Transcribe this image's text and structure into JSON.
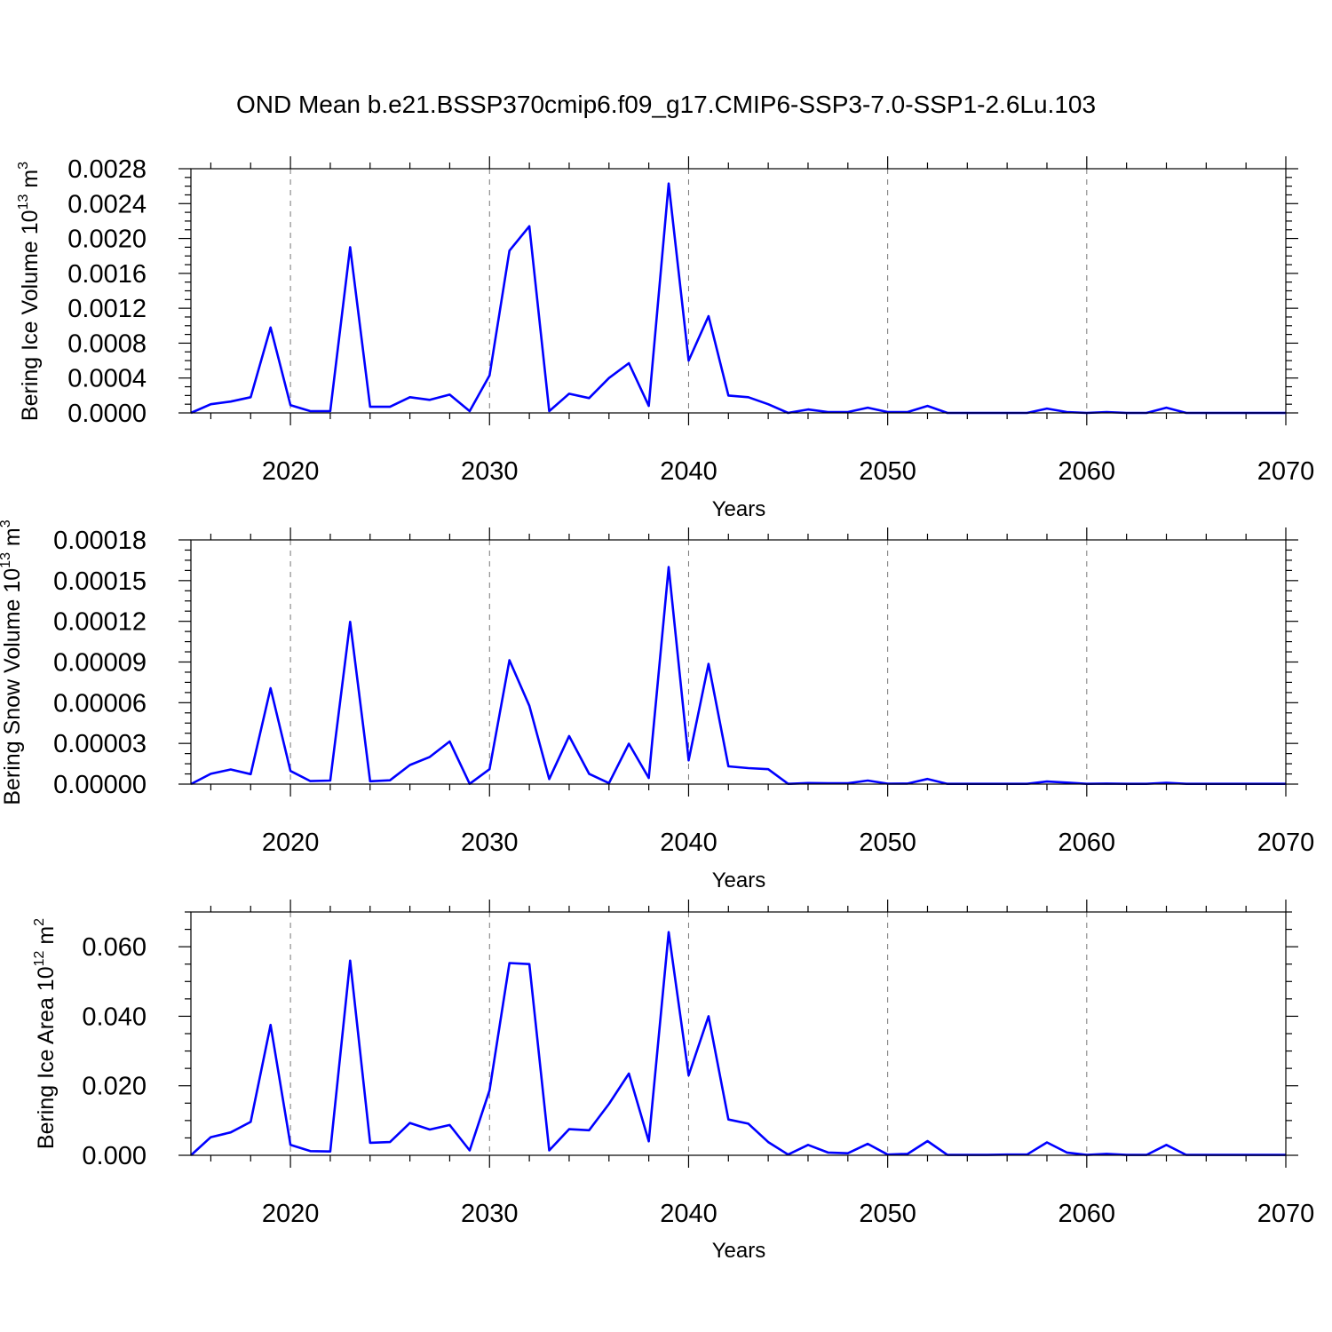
{
  "title": "OND Mean b.e21.BSSP370cmip6.f09_g17.CMIP6-SSP3-7.0-SSP1-2.6Lu.103",
  "line_color": "#0000ff",
  "chart_data": [
    {
      "type": "line",
      "ylabel_main": "Bering Ice Volume 10",
      "ylabel_exp": "13",
      "ylabel_unit": " m",
      "ylabel_unit_exp": "3",
      "xlabel": "Years",
      "xlim": [
        2015,
        2070
      ],
      "ylim": [
        0,
        0.0028
      ],
      "xticks": [
        2020,
        2030,
        2040,
        2050,
        2060,
        2070
      ],
      "yticks": [
        "0.0000",
        "0.0004",
        "0.0008",
        "0.0012",
        "0.0016",
        "0.0020",
        "0.0024",
        "0.0028"
      ],
      "grid": "vertical dashed",
      "x": [
        2015,
        2016,
        2017,
        2018,
        2019,
        2020,
        2021,
        2022,
        2023,
        2024,
        2025,
        2026,
        2027,
        2028,
        2029,
        2030,
        2031,
        2032,
        2033,
        2034,
        2035,
        2036,
        2037,
        2038,
        2039,
        2040,
        2041,
        2042,
        2043,
        2044,
        2045,
        2046,
        2047,
        2048,
        2049,
        2050,
        2051,
        2052,
        2053,
        2054,
        2055,
        2056,
        2057,
        2058,
        2059,
        2060,
        2061,
        2062,
        2063,
        2064,
        2065,
        2066,
        2067,
        2068,
        2069,
        2070
      ],
      "values": [
        0.0,
        0.0001,
        0.00013,
        0.00018,
        0.00098,
        9e-05,
        2e-05,
        2e-05,
        0.0019,
        7e-05,
        7e-05,
        0.00018,
        0.00015,
        0.00021,
        2e-05,
        0.00043,
        0.00186,
        0.00214,
        2e-05,
        0.00022,
        0.00017,
        0.0004,
        0.00057,
        8e-05,
        0.00263,
        0.0006,
        0.00111,
        0.0002,
        0.00018,
        0.0001,
        0.0,
        4e-05,
        1e-05,
        1e-05,
        6e-05,
        1e-05,
        1e-05,
        8e-05,
        0.0,
        0.0,
        0.0,
        0.0,
        0.0,
        5e-05,
        1e-05,
        0.0,
        1e-05,
        0.0,
        0.0,
        6e-05,
        0.0,
        0.0,
        0.0,
        0.0,
        0.0,
        0.0
      ]
    },
    {
      "type": "line",
      "ylabel_main": "Bering Snow Volume 10",
      "ylabel_exp": "13",
      "ylabel_unit": " m",
      "ylabel_unit_exp": "3",
      "xlabel": "Years",
      "xlim": [
        2015,
        2070
      ],
      "ylim": [
        0,
        0.00018
      ],
      "xticks": [
        2020,
        2030,
        2040,
        2050,
        2060,
        2070
      ],
      "yticks": [
        "0.00000",
        "0.00003",
        "0.00006",
        "0.00009",
        "0.00012",
        "0.00015",
        "0.00018"
      ],
      "grid": "vertical dashed",
      "x": [
        2015,
        2016,
        2017,
        2018,
        2019,
        2020,
        2021,
        2022,
        2023,
        2024,
        2025,
        2026,
        2027,
        2028,
        2029,
        2030,
        2031,
        2032,
        2033,
        2034,
        2035,
        2036,
        2037,
        2038,
        2039,
        2040,
        2041,
        2042,
        2043,
        2044,
        2045,
        2046,
        2047,
        2048,
        2049,
        2050,
        2051,
        2052,
        2053,
        2054,
        2055,
        2056,
        2057,
        2058,
        2059,
        2060,
        2061,
        2062,
        2063,
        2064,
        2065,
        2066,
        2067,
        2068,
        2069,
        2070
      ],
      "values": [
        0.0,
        7.6e-06,
        1.08e-05,
        7.3e-06,
        7.07e-05,
        9.7e-06,
        2.2e-06,
        2.6e-06,
        0.0001196,
        2.1e-06,
        2.8e-06,
        1.41e-05,
        2e-05,
        3.14e-05,
        2e-07,
        1.1e-05,
        9.13e-05,
        5.77e-05,
        3.7e-06,
        3.54e-05,
        7.6e-06,
        7e-07,
        2.98e-05,
        4.5e-06,
        0.00016,
        1.75e-05,
        8.86e-05,
        1.31e-05,
        1.18e-05,
        1.1e-05,
        2e-07,
        8e-07,
        6e-07,
        6e-07,
        2.6e-06,
        3e-07,
        4e-07,
        3.8e-06,
        2e-07,
        2e-07,
        2e-07,
        2e-07,
        2e-07,
        1.9e-06,
        1.1e-06,
        2e-07,
        4e-07,
        2e-07,
        2e-07,
        1e-06,
        2e-07,
        2e-07,
        2e-07,
        2e-07,
        2e-07,
        2e-07
      ]
    },
    {
      "type": "line",
      "ylabel_main": "Bering Ice Area 10",
      "ylabel_exp": "12",
      "ylabel_unit": " m",
      "ylabel_unit_exp": "2",
      "xlabel": "Years",
      "xlim": [
        2015,
        2070
      ],
      "ylim": [
        0,
        0.07
      ],
      "xticks": [
        2020,
        2030,
        2040,
        2050,
        2060,
        2070
      ],
      "yticks": [
        "0.000",
        "0.020",
        "0.040",
        "0.060"
      ],
      "ytick_values": [
        0,
        0.02,
        0.04,
        0.06
      ],
      "grid": "vertical dashed",
      "x": [
        2015,
        2016,
        2017,
        2018,
        2019,
        2020,
        2021,
        2022,
        2023,
        2024,
        2025,
        2026,
        2027,
        2028,
        2029,
        2030,
        2031,
        2032,
        2033,
        2034,
        2035,
        2036,
        2037,
        2038,
        2039,
        2040,
        2041,
        2042,
        2043,
        2044,
        2045,
        2046,
        2047,
        2048,
        2049,
        2050,
        2051,
        2052,
        2053,
        2054,
        2055,
        2056,
        2057,
        2058,
        2059,
        2060,
        2061,
        2062,
        2063,
        2064,
        2065,
        2066,
        2067,
        2068,
        2069,
        2070
      ],
      "values": [
        0.0,
        0.0052,
        0.0066,
        0.0096,
        0.0375,
        0.003,
        0.0012,
        0.0011,
        0.056,
        0.0036,
        0.0038,
        0.0093,
        0.0074,
        0.0087,
        0.0014,
        0.0187,
        0.0553,
        0.055,
        0.0014,
        0.0075,
        0.0072,
        0.0148,
        0.0235,
        0.004,
        0.0642,
        0.023,
        0.04,
        0.0103,
        0.0091,
        0.0038,
        0.0002,
        0.003,
        0.0008,
        0.0006,
        0.0033,
        0.0002,
        0.0004,
        0.0041,
        0.0001,
        0.0001,
        0.0001,
        0.0002,
        0.0002,
        0.0037,
        0.0008,
        0.0001,
        0.0004,
        0.0001,
        0.0001,
        0.003,
        0.0001,
        0.0001,
        0.0001,
        0.0001,
        0.0001,
        0.0001
      ]
    }
  ]
}
